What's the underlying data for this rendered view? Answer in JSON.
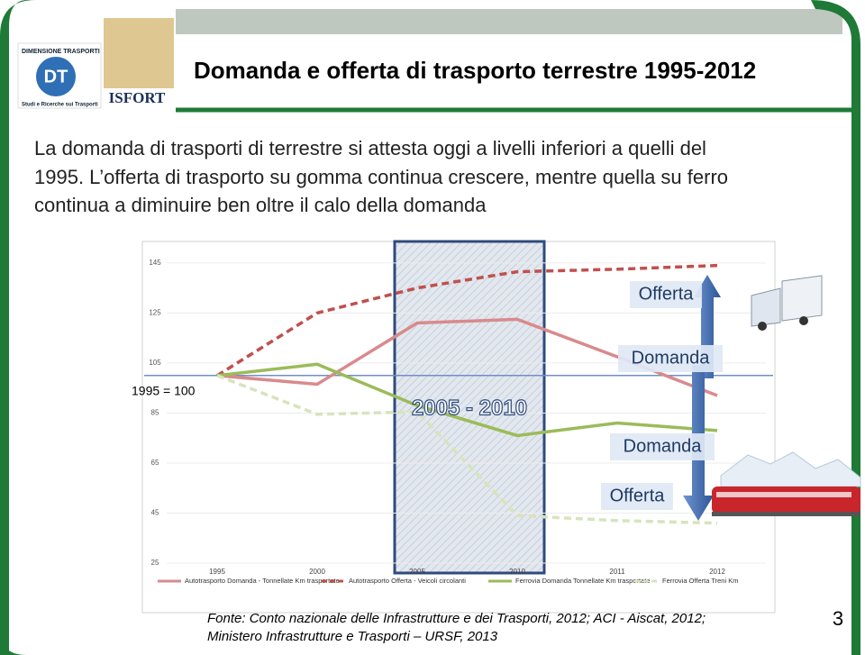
{
  "slide": {
    "title": "Domanda e offerta di trasporto terrestre 1995-2012",
    "body": [
      "La domanda di trasporti di terrestre si attesta oggi a livelli inferiori a quelli del",
      "1995. L’offerta di trasporto su gomma continua crescere, mentre quella su ferro",
      "continua a diminuire ben oltre il calo della domanda"
    ],
    "source": [
      "Fonte: Conto nazionale delle Infrastrutture e dei Trasporti, 2012; ACI - Aiscat, 2012;",
      "Ministero Infrastrutture e Trasporti – URSF, 2013"
    ],
    "page_number": "3",
    "logo": {
      "top": "DIMENSIONE TRASPORTI",
      "mark": "DT",
      "bottom": "Studi e Ricerche sui Trasporti",
      "brand": "ISFORT"
    }
  },
  "chart_data": {
    "type": "line",
    "categories": [
      "1995",
      "2000",
      "2005",
      "2010",
      "2011",
      "2012"
    ],
    "series": [
      {
        "name": "Autotrasporto Domanda - Tonnellate Km trasportate",
        "color": "#d98a8c",
        "dashed": false,
        "values": [
          100,
          96.5,
          121,
          122.5,
          107.5,
          92
        ]
      },
      {
        "name": "Autotrasporto Offerta - Veicoli circolanti",
        "color": "#c0504d",
        "dashed": true,
        "values": [
          100,
          125,
          135,
          141.5,
          142.5,
          144
        ]
      },
      {
        "name": "Ferrovia Domanda Tonnellate Km trasportate",
        "color": "#9bbb59",
        "dashed": false,
        "values": [
          100,
          104.5,
          88,
          76,
          81,
          78
        ]
      },
      {
        "name": "Ferrovia Offerta Treni Km",
        "color": "#d7e4bc",
        "dashed": true,
        "values": [
          100,
          84.5,
          85.5,
          44,
          42,
          41
        ]
      }
    ],
    "ylim": [
      25,
      150
    ],
    "yticks": [
      25,
      45,
      65,
      85,
      105,
      125,
      145
    ],
    "grid": true,
    "baseline": 100,
    "baseline_label": "1995 = 100",
    "highlight_label": "2005 - 2010",
    "annotations": [
      "Offerta",
      "Domanda",
      "Domanda",
      "Offerta"
    ]
  }
}
